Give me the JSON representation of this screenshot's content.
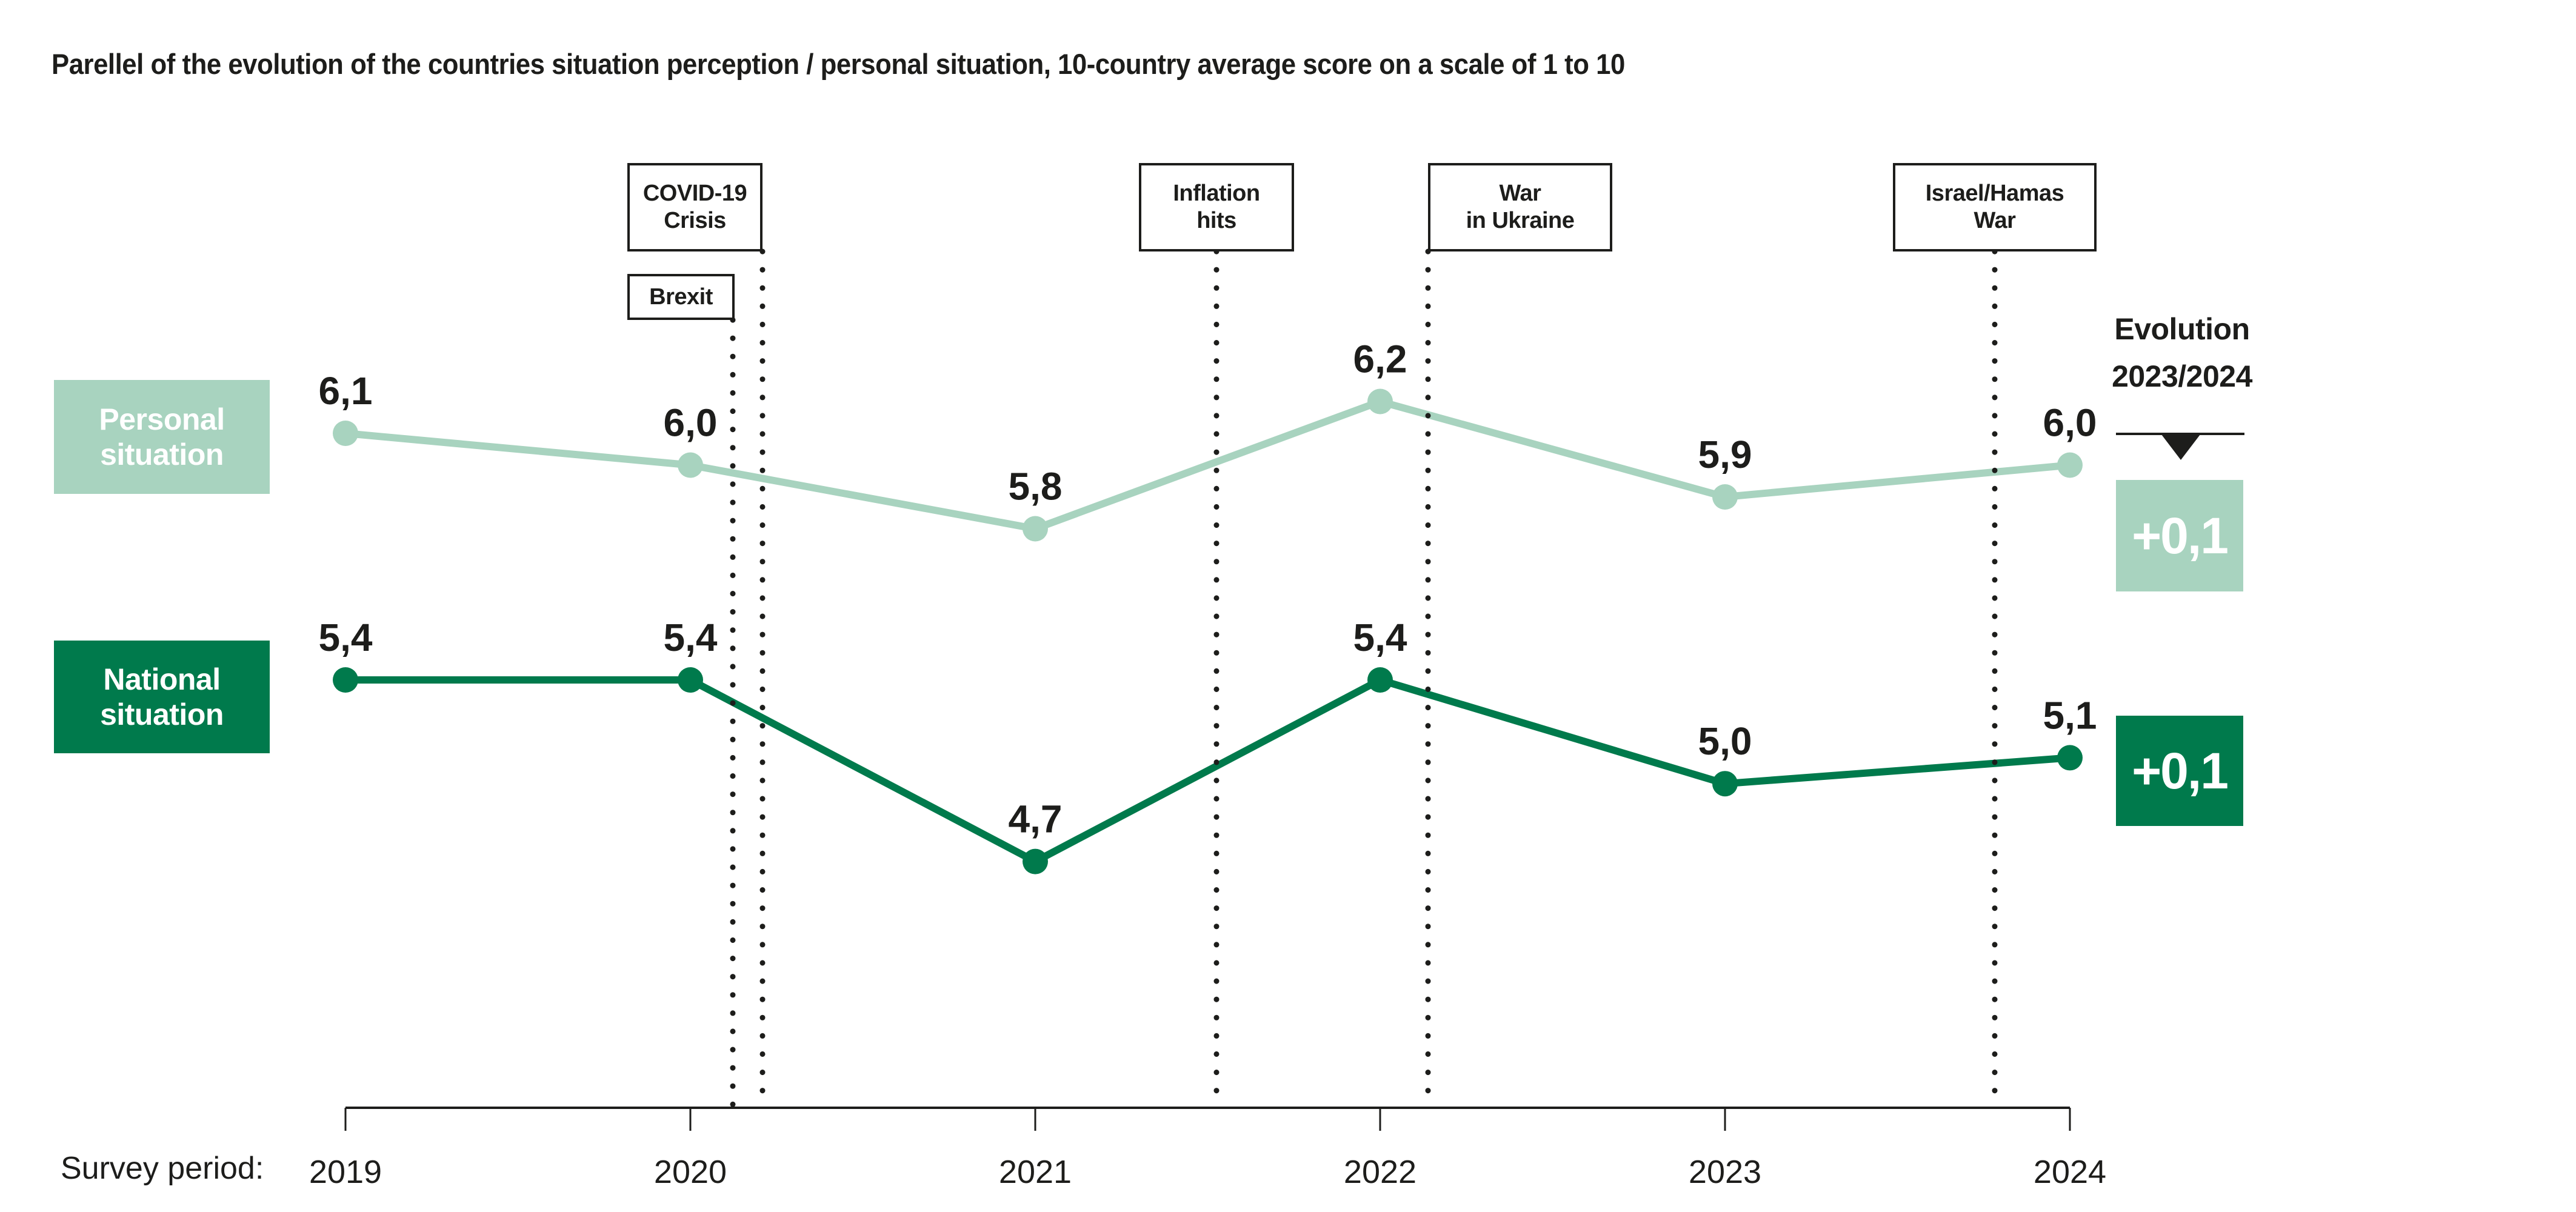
{
  "title": "Parellel of the evolution of the countries situation perception / personal situation, 10-country average score on a scale of 1 to 10",
  "legend": {
    "personal": {
      "line1": "Personal",
      "line2": "situation"
    },
    "national": {
      "line1": "National",
      "line2": "situation"
    }
  },
  "events": {
    "covid": {
      "line1": "COVID-19",
      "line2": "Crisis"
    },
    "brexit": {
      "line1": "Brexit",
      "line2": ""
    },
    "inflation": {
      "line1": "Inflation",
      "line2": "hits"
    },
    "ukraine": {
      "line1": "War",
      "line2": "in Ukraine"
    },
    "israel": {
      "line1": "Israel/Hamas",
      "line2": "War"
    }
  },
  "evolution": {
    "line1": "Evolution",
    "line2": "2023/2024",
    "personal_delta": "+0,1",
    "national_delta": "+0,1"
  },
  "axis": {
    "caption": "Survey period:",
    "years": [
      "2019",
      "2020",
      "2021",
      "2022",
      "2023",
      "2024"
    ]
  },
  "colors": {
    "personal": "#a8d3bf",
    "national": "#007a4c",
    "text": "#1d1d1b",
    "background": "#ffffff"
  },
  "chart_data": {
    "type": "line",
    "title": "Parellel of the evolution of the countries situation perception / personal situation, 10-country average score on a scale of 1 to 10",
    "categories": [
      "2019",
      "2020",
      "2021",
      "2022",
      "2023",
      "2024"
    ],
    "series": [
      {
        "name": "Personal situation",
        "color": "#a8d3bf",
        "values": [
          6.1,
          6.0,
          5.8,
          6.2,
          5.9,
          6.0
        ],
        "labels": [
          "6,1",
          "6,0",
          "5,8",
          "6,2",
          "5,9",
          "6,0"
        ],
        "evolution_2023_2024": "+0,1"
      },
      {
        "name": "National situation",
        "color": "#007a4c",
        "values": [
          5.4,
          5.4,
          4.7,
          5.4,
          5.0,
          5.1
        ],
        "labels": [
          "5,4",
          "5,4",
          "4,7",
          "5,4",
          "5,0",
          "5,1"
        ],
        "evolution_2023_2024": "+0,1"
      }
    ],
    "annotations": [
      {
        "label": "Brexit",
        "x": "2020"
      },
      {
        "label": "COVID-19 Crisis",
        "x": "2020"
      },
      {
        "label": "Inflation hits",
        "x": "2021/2022"
      },
      {
        "label": "War in Ukraine",
        "x": "2022"
      },
      {
        "label": "Israel/Hamas War",
        "x": "2023/2024"
      }
    ],
    "value_range_scale": [
      1,
      10
    ],
    "xlabel": "Survey period:",
    "ylabel": "",
    "grid": false,
    "legend_position": "left",
    "data_labels": true,
    "y_axis_hidden": true
  }
}
